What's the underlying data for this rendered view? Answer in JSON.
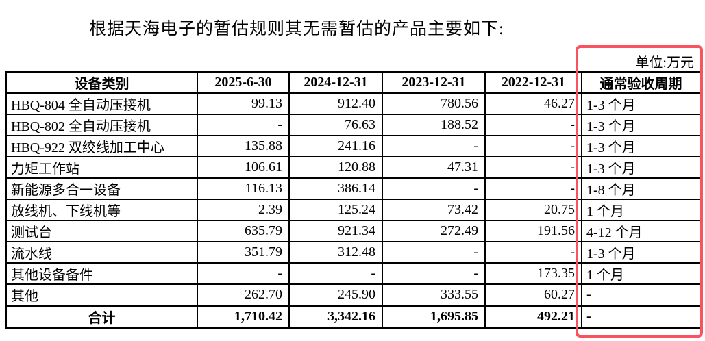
{
  "page": {
    "title": "根据天海电子的暂估规则其无需暂估的产品主要如下:",
    "unit_label": "单位:万元"
  },
  "highlight": {
    "box_color": "#f9535f"
  },
  "table": {
    "columns": [
      "设备类别",
      "2025-6-30",
      "2024-12-31",
      "2023-12-31",
      "2022-12-31",
      "通常验收周期"
    ],
    "rows": [
      {
        "label": "HBQ-804 全自动压接机",
        "values": [
          "99.13",
          "912.40",
          "780.56",
          "46.27"
        ],
        "period": "1-3 个月"
      },
      {
        "label": "HBQ-802 全自动压接机",
        "values": [
          "-",
          "76.63",
          "188.52",
          "-"
        ],
        "period": "1-3 个月"
      },
      {
        "label": "HBQ-922 双绞线加工中心",
        "values": [
          "135.88",
          "241.16",
          "-",
          "-"
        ],
        "period": "1-3 个月"
      },
      {
        "label": "力矩工作站",
        "values": [
          "106.61",
          "120.88",
          "47.31",
          "-"
        ],
        "period": "1-3 个月"
      },
      {
        "label": "新能源多合一设备",
        "values": [
          "116.13",
          "386.14",
          "-",
          "-"
        ],
        "period": "1-8 个月"
      },
      {
        "label": "放线机、下线机等",
        "values": [
          "2.39",
          "125.24",
          "73.42",
          "20.75"
        ],
        "period": "1 个月"
      },
      {
        "label": "测试台",
        "values": [
          "635.79",
          "921.34",
          "272.49",
          "191.56"
        ],
        "period": "4-12 个月"
      },
      {
        "label": "流水线",
        "values": [
          "351.79",
          "312.48",
          "-",
          "-"
        ],
        "period": "1-3 个月"
      },
      {
        "label": "其他设备备件",
        "values": [
          "-",
          "-",
          "-",
          "173.35"
        ],
        "period": "1 个月"
      },
      {
        "label": "其他",
        "values": [
          "262.70",
          "245.90",
          "333.55",
          "60.27"
        ],
        "period": "-"
      }
    ],
    "total_row": {
      "label": "合计",
      "values": [
        "1,710.42",
        "3,342.16",
        "1,695.85",
        "492.21"
      ],
      "period": "-"
    }
  }
}
